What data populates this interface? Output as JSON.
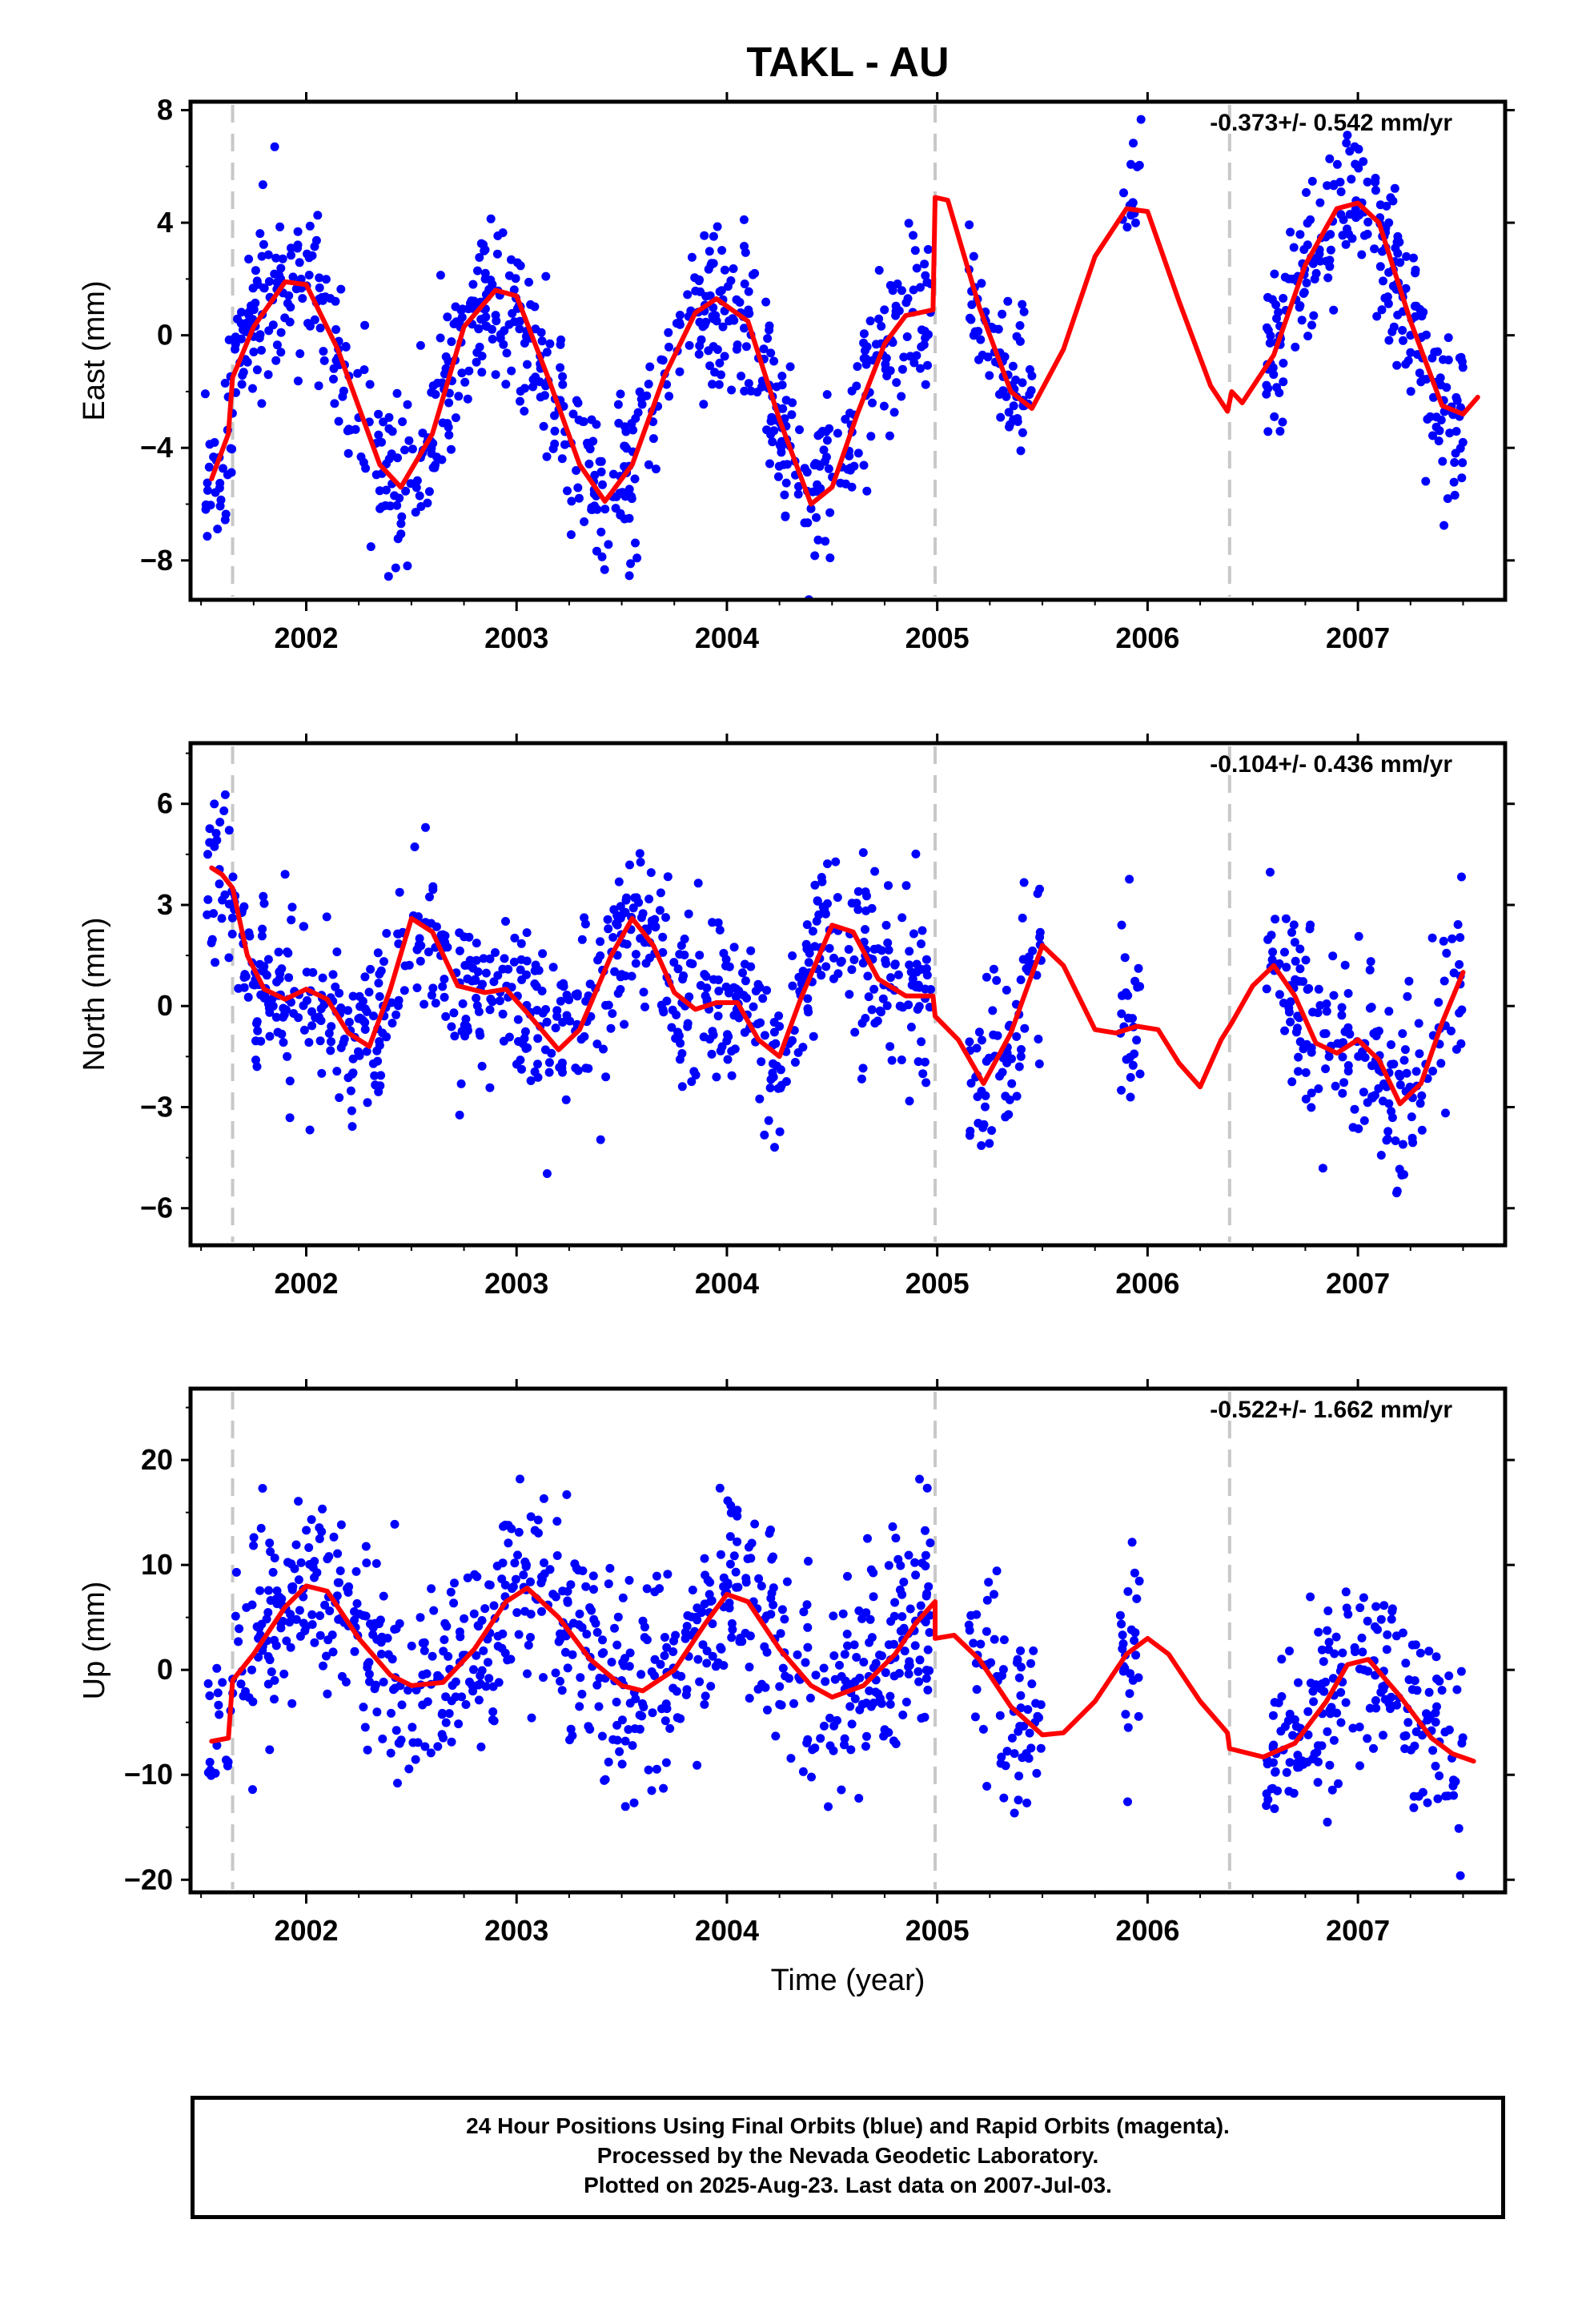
{
  "title": "TAKL - AU",
  "footer": {
    "line1": "24 Hour Positions Using Final Orbits (blue) and Rapid Orbits (magenta).",
    "line2": "Processed by the Nevada Geodetic Laboratory.",
    "line3": "Plotted on 2025-Aug-23. Last data on 2007-Jul-03."
  },
  "colors": {
    "data_points": "#0000ff",
    "model_fit": "#ff0000",
    "event_lines": "#c8c8c8",
    "frame": "#000000"
  },
  "chart_data": [
    {
      "type": "scatter",
      "ylabel": "East (mm)",
      "xlabel": "",
      "rate_label": "-0.373+/- 0.542 mm/yr",
      "xlim": [
        2001.45,
        2007.7
      ],
      "ylim": [
        -9.4,
        8.3
      ],
      "yticks": [
        -8,
        -4,
        0,
        4,
        8
      ],
      "xticks": [
        2002,
        2003,
        2004,
        2005,
        2006,
        2007
      ],
      "event_lines": [
        2001.65,
        2004.99,
        2006.39
      ],
      "data_segments": [
        [
          2001.52,
          2004.97
        ],
        [
          2005.15,
          2005.45
        ],
        [
          2005.87,
          2005.97
        ],
        [
          2006.56,
          2007.5
        ]
      ],
      "fit": [
        [
          2001.55,
          -5.1
        ],
        [
          2001.63,
          -3.5
        ],
        [
          2001.65,
          -1.5
        ],
        [
          2001.75,
          0.3
        ],
        [
          2001.9,
          1.9
        ],
        [
          2002.0,
          1.8
        ],
        [
          2002.15,
          -0.5
        ],
        [
          2002.35,
          -4.6
        ],
        [
          2002.45,
          -5.4
        ],
        [
          2002.6,
          -3.5
        ],
        [
          2002.75,
          0.3
        ],
        [
          2002.9,
          1.6
        ],
        [
          2003.0,
          1.4
        ],
        [
          2003.15,
          -1.5
        ],
        [
          2003.3,
          -4.6
        ],
        [
          2003.42,
          -5.9
        ],
        [
          2003.55,
          -4.6
        ],
        [
          2003.7,
          -1.5
        ],
        [
          2003.85,
          0.8
        ],
        [
          2003.95,
          1.3
        ],
        [
          2004.1,
          0.5
        ],
        [
          2004.25,
          -3.0
        ],
        [
          2004.4,
          -6.0
        ],
        [
          2004.5,
          -5.4
        ],
        [
          2004.62,
          -2.8
        ],
        [
          2004.75,
          -0.3
        ],
        [
          2004.85,
          0.7
        ],
        [
          2004.98,
          0.9
        ],
        [
          2004.99,
          4.9
        ],
        [
          2005.05,
          4.8
        ],
        [
          2005.2,
          1.0
        ],
        [
          2005.35,
          -2.0
        ],
        [
          2005.45,
          -2.6
        ],
        [
          2005.6,
          -0.5
        ],
        [
          2005.75,
          2.8
        ],
        [
          2005.9,
          4.5
        ],
        [
          2006.0,
          4.4
        ],
        [
          2006.15,
          1.2
        ],
        [
          2006.3,
          -1.8
        ],
        [
          2006.38,
          -2.7
        ],
        [
          2006.4,
          -2.0
        ],
        [
          2006.45,
          -2.4
        ],
        [
          2006.6,
          -0.7
        ],
        [
          2006.75,
          2.5
        ],
        [
          2006.9,
          4.5
        ],
        [
          2007.0,
          4.7
        ],
        [
          2007.1,
          4.0
        ],
        [
          2007.25,
          0.5
        ],
        [
          2007.4,
          -2.5
        ],
        [
          2007.5,
          -2.8
        ],
        [
          2007.57,
          -2.2
        ]
      ],
      "data_model": {
        "mid": 0,
        "amp": 3.8,
        "period": 1.0,
        "phase": 0.95,
        "noise": 1.5,
        "seed": 11,
        "count": 1100
      }
    },
    {
      "type": "scatter",
      "ylabel": "North (mm)",
      "xlabel": "",
      "rate_label": "-0.104+/- 0.436 mm/yr",
      "xlim": [
        2001.45,
        2007.7
      ],
      "ylim": [
        -7.1,
        7.8
      ],
      "yticks": [
        -6,
        -3,
        0,
        3,
        6
      ],
      "xticks": [
        2002,
        2003,
        2004,
        2005,
        2006,
        2007
      ],
      "event_lines": [
        2001.65,
        2004.99,
        2006.39
      ],
      "data_segments": [
        [
          2001.52,
          2004.97
        ],
        [
          2005.15,
          2005.5
        ],
        [
          2005.87,
          2005.97
        ],
        [
          2006.56,
          2007.5
        ]
      ],
      "fit": [
        [
          2001.55,
          4.1
        ],
        [
          2001.6,
          3.9
        ],
        [
          2001.65,
          3.5
        ],
        [
          2001.72,
          1.5
        ],
        [
          2001.8,
          0.5
        ],
        [
          2001.9,
          0.2
        ],
        [
          2002.0,
          0.5
        ],
        [
          2002.1,
          0.2
        ],
        [
          2002.2,
          -0.8
        ],
        [
          2002.3,
          -1.2
        ],
        [
          2002.4,
          0.5
        ],
        [
          2002.5,
          2.6
        ],
        [
          2002.6,
          2.2
        ],
        [
          2002.72,
          0.6
        ],
        [
          2002.85,
          0.4
        ],
        [
          2002.95,
          0.5
        ],
        [
          2003.05,
          -0.2
        ],
        [
          2003.2,
          -1.3
        ],
        [
          2003.3,
          -0.7
        ],
        [
          2003.45,
          1.5
        ],
        [
          2003.55,
          2.6
        ],
        [
          2003.65,
          1.8
        ],
        [
          2003.75,
          0.4
        ],
        [
          2003.85,
          -0.1
        ],
        [
          2003.95,
          0.1
        ],
        [
          2004.05,
          0.1
        ],
        [
          2004.15,
          -1.0
        ],
        [
          2004.25,
          -1.5
        ],
        [
          2004.35,
          0.2
        ],
        [
          2004.5,
          2.4
        ],
        [
          2004.6,
          2.2
        ],
        [
          2004.72,
          0.8
        ],
        [
          2004.85,
          0.3
        ],
        [
          2004.98,
          0.3
        ],
        [
          2004.99,
          -0.3
        ],
        [
          2005.1,
          -1.0
        ],
        [
          2005.22,
          -2.3
        ],
        [
          2005.35,
          -0.8
        ],
        [
          2005.5,
          1.8
        ],
        [
          2005.6,
          1.2
        ],
        [
          2005.75,
          -0.7
        ],
        [
          2005.85,
          -0.8
        ],
        [
          2005.95,
          -0.6
        ],
        [
          2006.05,
          -0.7
        ],
        [
          2006.15,
          -1.7
        ],
        [
          2006.25,
          -2.4
        ],
        [
          2006.35,
          -1.0
        ],
        [
          2006.4,
          -0.5
        ],
        [
          2006.5,
          0.6
        ],
        [
          2006.6,
          1.2
        ],
        [
          2006.7,
          0.3
        ],
        [
          2006.8,
          -1.1
        ],
        [
          2006.9,
          -1.4
        ],
        [
          2007.0,
          -1.0
        ],
        [
          2007.1,
          -1.6
        ],
        [
          2007.2,
          -2.9
        ],
        [
          2007.3,
          -2.3
        ],
        [
          2007.4,
          -0.5
        ],
        [
          2007.5,
          1.0
        ]
      ],
      "data_model": {
        "mid": 0,
        "amp": 0,
        "period": 1.0,
        "phase": 0.0,
        "noise": 1.3,
        "seed": 23,
        "count": 1050
      }
    },
    {
      "type": "scatter",
      "ylabel": "Up (mm)",
      "xlabel": "Time (year)",
      "rate_label": "-0.522+/- 1.662 mm/yr",
      "xlim": [
        2001.45,
        2007.7
      ],
      "ylim": [
        -21.2,
        26.8
      ],
      "yticks": [
        -20,
        -10,
        0,
        10,
        20
      ],
      "xticks": [
        2002,
        2003,
        2004,
        2005,
        2006,
        2007
      ],
      "event_lines": [
        2001.65,
        2004.99,
        2006.39
      ],
      "data_segments": [
        [
          2001.52,
          2004.97
        ],
        [
          2005.15,
          2005.5
        ],
        [
          2005.87,
          2005.97
        ],
        [
          2006.56,
          2007.5
        ]
      ],
      "fit": [
        [
          2001.55,
          -6.8
        ],
        [
          2001.63,
          -6.5
        ],
        [
          2001.65,
          -1.0
        ],
        [
          2001.75,
          1.5
        ],
        [
          2001.9,
          6.0
        ],
        [
          2002.0,
          8.0
        ],
        [
          2002.1,
          7.5
        ],
        [
          2002.25,
          3.0
        ],
        [
          2002.4,
          -0.5
        ],
        [
          2002.5,
          -1.5
        ],
        [
          2002.65,
          -1.2
        ],
        [
          2002.8,
          2.0
        ],
        [
          2002.95,
          6.5
        ],
        [
          2003.05,
          7.8
        ],
        [
          2003.2,
          5.0
        ],
        [
          2003.35,
          1.0
        ],
        [
          2003.5,
          -1.5
        ],
        [
          2003.6,
          -2.0
        ],
        [
          2003.75,
          0.0
        ],
        [
          2003.9,
          4.5
        ],
        [
          2004.0,
          7.2
        ],
        [
          2004.1,
          6.5
        ],
        [
          2004.25,
          2.0
        ],
        [
          2004.4,
          -1.5
        ],
        [
          2004.5,
          -2.6
        ],
        [
          2004.65,
          -1.5
        ],
        [
          2004.8,
          1.5
        ],
        [
          2004.9,
          4.5
        ],
        [
          2004.99,
          6.5
        ],
        [
          2004.99,
          3.0
        ],
        [
          2005.08,
          3.3
        ],
        [
          2005.2,
          1.0
        ],
        [
          2005.35,
          -3.5
        ],
        [
          2005.5,
          -6.2
        ],
        [
          2005.6,
          -6.0
        ],
        [
          2005.75,
          -3.0
        ],
        [
          2005.9,
          1.5
        ],
        [
          2006.0,
          3.0
        ],
        [
          2006.1,
          1.5
        ],
        [
          2006.25,
          -3.0
        ],
        [
          2006.38,
          -6.0
        ],
        [
          2006.39,
          -7.5
        ],
        [
          2006.55,
          -8.3
        ],
        [
          2006.7,
          -7.0
        ],
        [
          2006.85,
          -3.0
        ],
        [
          2006.95,
          0.5
        ],
        [
          2007.05,
          1.0
        ],
        [
          2007.2,
          -2.5
        ],
        [
          2007.35,
          -6.5
        ],
        [
          2007.45,
          -8.0
        ],
        [
          2007.55,
          -8.7
        ]
      ],
      "data_model": {
        "mid": 0,
        "amp": 0,
        "period": 1.0,
        "phase": 0.0,
        "noise": 4.8,
        "seed": 37,
        "count": 1050
      }
    }
  ]
}
